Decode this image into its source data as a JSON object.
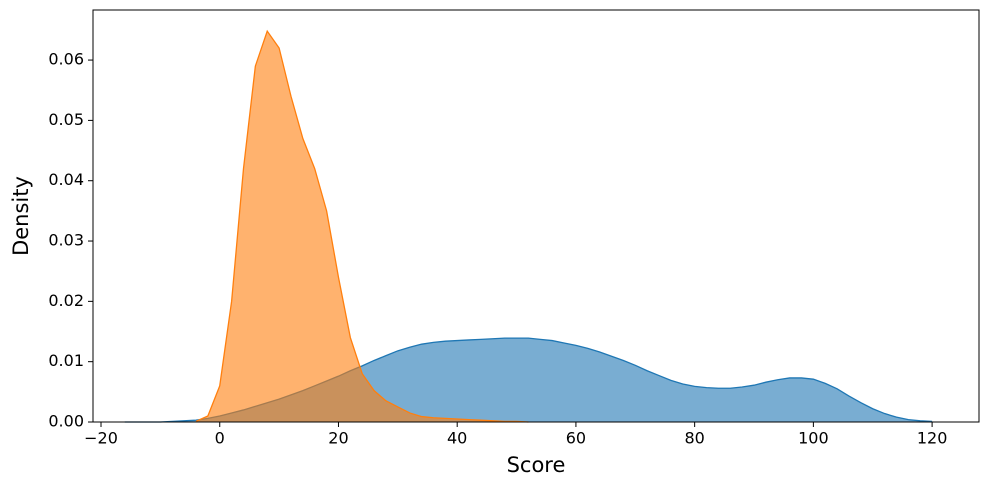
{
  "chart_data": {
    "type": "area",
    "x_label": "Score",
    "y_label": "Density",
    "x": [
      -16,
      -14,
      -12,
      -10,
      -8,
      -6,
      -4,
      -2,
      0,
      2,
      4,
      6,
      8,
      10,
      12,
      14,
      16,
      18,
      20,
      22,
      24,
      26,
      28,
      30,
      32,
      34,
      36,
      38,
      40,
      42,
      44,
      46,
      48,
      50,
      52,
      54,
      56,
      58,
      60,
      62,
      64,
      66,
      68,
      70,
      72,
      74,
      76,
      78,
      80,
      82,
      84,
      86,
      88,
      90,
      92,
      94,
      96,
      98,
      100,
      102,
      104,
      106,
      108,
      110,
      112,
      114,
      116,
      118,
      120
    ],
    "series": [
      {
        "color": "#1f77b4",
        "values": [
          0.0,
          0.0,
          0.0,
          0.0,
          0.0001,
          0.0002,
          0.0003,
          0.0006,
          0.001,
          0.0015,
          0.002,
          0.0026,
          0.0032,
          0.0038,
          0.0045,
          0.0052,
          0.006,
          0.0068,
          0.0076,
          0.0085,
          0.0093,
          0.0102,
          0.011,
          0.0118,
          0.0124,
          0.0129,
          0.0132,
          0.0134,
          0.0135,
          0.0136,
          0.0137,
          0.0138,
          0.0139,
          0.0139,
          0.0139,
          0.0137,
          0.0135,
          0.0131,
          0.0127,
          0.0122,
          0.0116,
          0.0109,
          0.0102,
          0.0094,
          0.0085,
          0.0077,
          0.0069,
          0.0063,
          0.0059,
          0.0057,
          0.0056,
          0.0056,
          0.0058,
          0.0061,
          0.0066,
          0.007,
          0.0073,
          0.0073,
          0.0071,
          0.0064,
          0.0055,
          0.0043,
          0.0032,
          0.0022,
          0.0014,
          0.0008,
          0.0004,
          0.0002,
          0.0001
        ]
      },
      {
        "color": "#ff7f0e",
        "values": [
          null,
          null,
          null,
          null,
          null,
          null,
          0.0001,
          0.001,
          0.006,
          0.02,
          0.042,
          0.059,
          0.0648,
          0.062,
          0.054,
          0.047,
          0.042,
          0.035,
          0.024,
          0.014,
          0.008,
          0.0052,
          0.0035,
          0.0025,
          0.0015,
          0.0009,
          0.0007,
          0.0006,
          0.0005,
          0.0004,
          0.0003,
          0.0002,
          0.0001,
          0.0001,
          0.0,
          null,
          null,
          null,
          null,
          null,
          null,
          null,
          null,
          null,
          null,
          null,
          null,
          null,
          null,
          null,
          null,
          null,
          null,
          null,
          null,
          null,
          null,
          null,
          null,
          null,
          null,
          null,
          null,
          null,
          null,
          null,
          null,
          null,
          null
        ]
      }
    ],
    "xlim": [
      -21.35,
      127.9
    ],
    "xticks": [
      {
        "value": -20,
        "label": "−20"
      },
      0,
      20,
      40,
      60,
      80,
      100,
      120
    ],
    "ylim": [
      0,
      0.0683
    ],
    "yticks": [
      {
        "value": 0,
        "label": "0.00"
      },
      0.01,
      0.02,
      0.03,
      0.04,
      0.05,
      0.06
    ],
    "fill_opacity": 0.6
  }
}
